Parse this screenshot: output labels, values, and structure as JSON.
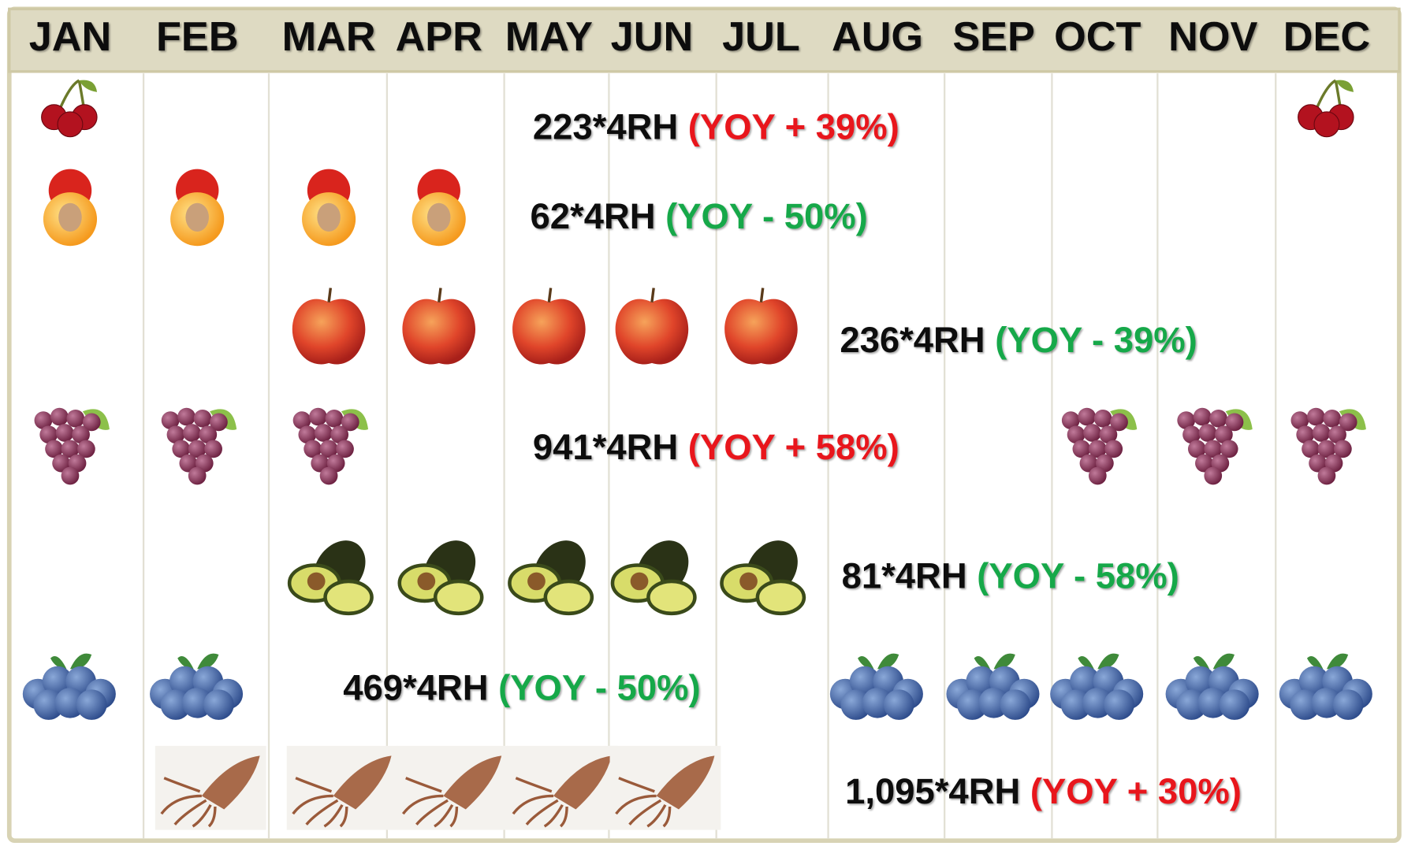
{
  "header": {
    "months": [
      "JAN",
      "FEB",
      "MAR",
      "APR",
      "MAY",
      "JUN",
      "JUL",
      "AUG",
      "SEP",
      "OCT",
      "NOV",
      "DEC"
    ]
  },
  "rows": [
    {
      "volume": "223*4RH",
      "yoy": "(YOY + 39%)",
      "yoy_color": "#e8141c"
    },
    {
      "volume": "62*4RH",
      "yoy": "(YOY - 50%)",
      "yoy_color": "#13a84a"
    },
    {
      "volume": "236*4RH",
      "yoy": "(YOY - 39%)",
      "yoy_color": "#13a84a"
    },
    {
      "volume": "941*4RH",
      "yoy": "(YOY + 58%)",
      "yoy_color": "#e8141c"
    },
    {
      "volume": "81*4RH",
      "yoy": "(YOY - 58%)",
      "yoy_color": "#13a84a"
    },
    {
      "volume": "469*4RH",
      "yoy": "(YOY - 50%)",
      "yoy_color": "#13a84a"
    },
    {
      "volume": "1,095*4RH",
      "yoy": "(YOY + 30%)",
      "yoy_color": "#e8141c"
    }
  ]
}
